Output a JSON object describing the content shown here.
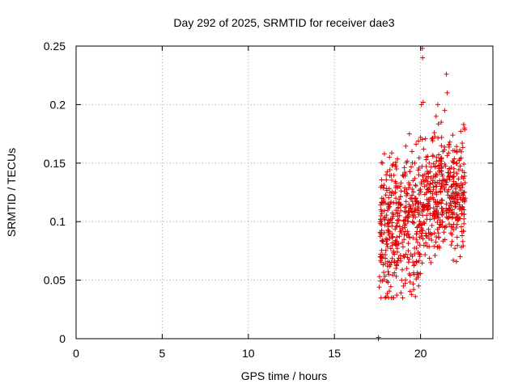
{
  "chart_data": {
    "type": "scatter",
    "title": "Day 292 of 2025, SRMTID for receiver dae3",
    "xlabel": "GPS time / hours",
    "ylabel": "SRMTID / TECUs",
    "xlim": [
      0,
      24.2
    ],
    "ylim": [
      0,
      0.25
    ],
    "x_ticks": [
      0,
      5,
      10,
      15,
      20
    ],
    "x_tick_labels": [
      "0",
      "5",
      "10",
      "15",
      "20"
    ],
    "y_ticks": [
      0,
      0.05,
      0.1,
      0.15,
      0.2,
      0.25
    ],
    "y_tick_labels": [
      "0",
      "0.05",
      "0.1",
      "0.15",
      "0.2",
      "0.25"
    ],
    "grid": true,
    "marker": "+",
    "color": "#e00000",
    "series": [
      {
        "name": "dae3",
        "x_range": [
          17.5,
          22.6
        ],
        "seed": 292,
        "n_points": 780,
        "points": [
          [
            17.55,
            0.0
          ],
          [
            17.56,
            0.001
          ],
          [
            17.6,
            0.044
          ],
          [
            17.62,
            0.053
          ],
          [
            17.65,
            0.07
          ],
          [
            17.7,
            0.105
          ],
          [
            17.75,
            0.12
          ],
          [
            17.8,
            0.15
          ],
          [
            17.9,
            0.158
          ],
          [
            18.0,
            0.14
          ],
          [
            18.2,
            0.155
          ],
          [
            18.4,
            0.149
          ],
          [
            18.6,
            0.145
          ],
          [
            18.8,
            0.13
          ],
          [
            18.9,
            0.05
          ],
          [
            19.0,
            0.045
          ],
          [
            19.2,
            0.06
          ],
          [
            19.35,
            0.175
          ],
          [
            19.4,
            0.12
          ],
          [
            19.5,
            0.16
          ],
          [
            19.6,
            0.042
          ],
          [
            19.7,
            0.036
          ],
          [
            19.8,
            0.095
          ],
          [
            19.9,
            0.14
          ],
          [
            20.0,
            0.172
          ],
          [
            20.05,
            0.2
          ],
          [
            20.1,
            0.248
          ],
          [
            20.12,
            0.24
          ],
          [
            20.15,
            0.202
          ],
          [
            20.3,
            0.09
          ],
          [
            20.5,
            0.15
          ],
          [
            20.6,
            0.065
          ],
          [
            20.8,
            0.176
          ],
          [
            20.9,
            0.19
          ],
          [
            21.0,
            0.2
          ],
          [
            21.2,
            0.185
          ],
          [
            21.3,
            0.16
          ],
          [
            21.4,
            0.195
          ],
          [
            21.5,
            0.226
          ],
          [
            21.55,
            0.21
          ],
          [
            21.7,
            0.168
          ],
          [
            21.9,
            0.067
          ],
          [
            22.1,
            0.16
          ],
          [
            22.3,
            0.07
          ],
          [
            22.5,
            0.183
          ],
          [
            22.55,
            0.18
          ],
          [
            22.6,
            0.12
          ]
        ]
      }
    ]
  }
}
